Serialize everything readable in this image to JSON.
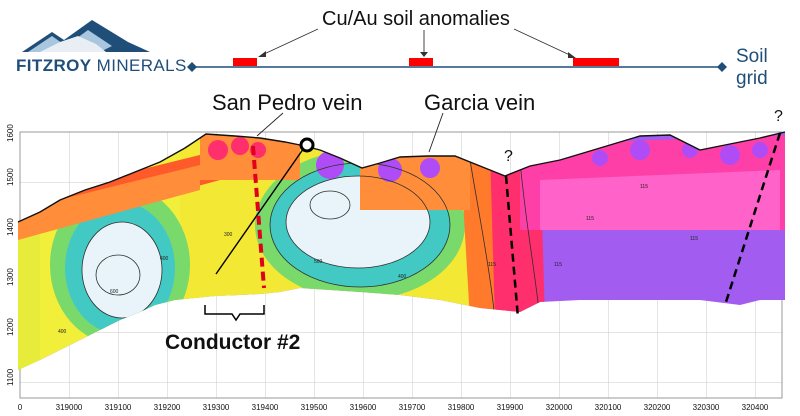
{
  "logo": {
    "brand_bold": "FITZROY",
    "brand_light": " MINERALS"
  },
  "labels": {
    "soil_anomalies": "Cu/Au soil anomalies",
    "soil_grid_line1": "Soil",
    "soil_grid_line2": "grid",
    "san_pedro_vein": "San Pedro vein",
    "garcia_vein": "Garcia vein",
    "conductor": "Conductor #2",
    "query": "?"
  },
  "contour_labels": [
    "600",
    "400",
    "300",
    "500",
    "400",
    "400",
    "115",
    "115",
    "115",
    "115",
    "115"
  ],
  "axes": {
    "y_ticks": [
      "1100",
      "1200",
      "1300",
      "1400",
      "1500",
      "1600"
    ],
    "x_ticks": [
      "0",
      "319000",
      "319100",
      "319200",
      "319300",
      "319400",
      "319500",
      "319600",
      "319700",
      "319800",
      "319900",
      "320000",
      "320100",
      "320200",
      "320300",
      "320400"
    ]
  },
  "colors": {
    "brand": "#1f4e79",
    "soil_line": "#1f4e79",
    "anomaly": "#ff0000",
    "vein_dashed": "#e0001b",
    "fault_dashed": "#000000"
  }
}
